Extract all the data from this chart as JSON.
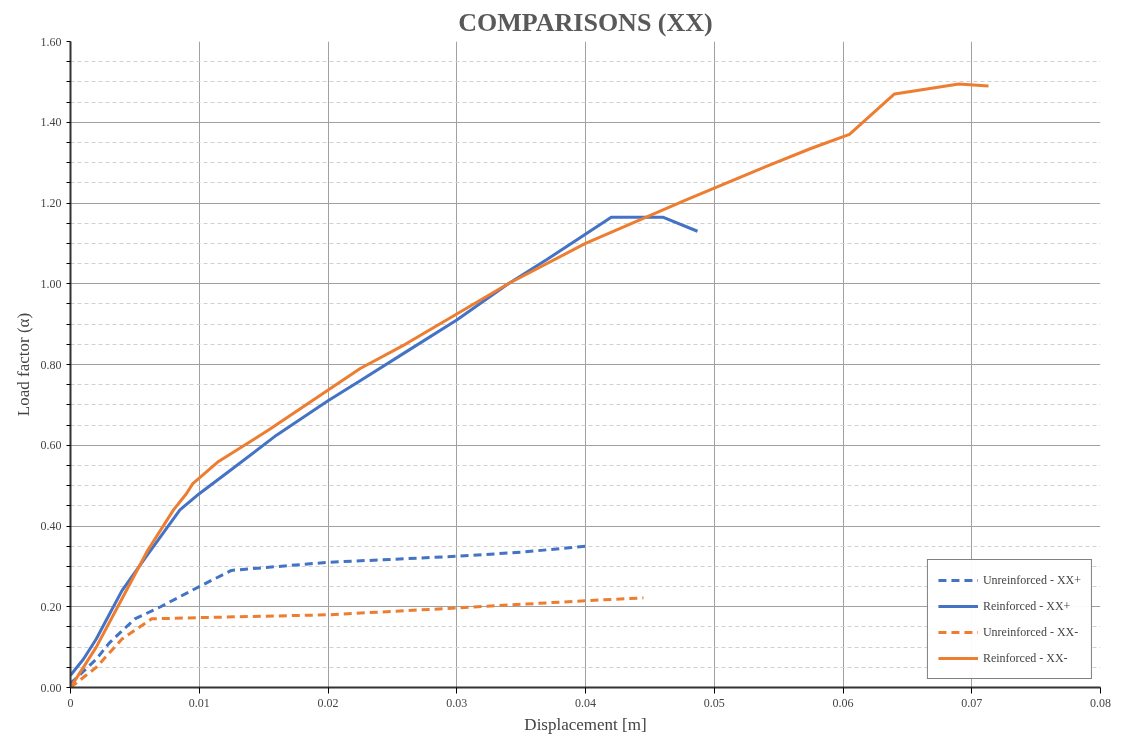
{
  "chart_data": {
    "type": "line",
    "title": "COMPARISONS (XX)",
    "xlabel": "Displacement [m]",
    "ylabel": "Load factor (α)",
    "xlim": [
      0,
      0.08
    ],
    "ylim": [
      0,
      1.6
    ],
    "xticks": [
      {
        "value": 0,
        "label": "0"
      },
      {
        "value": 0.01,
        "label": "0.01"
      },
      {
        "value": 0.02,
        "label": "0.02"
      },
      {
        "value": 0.03,
        "label": "0.03"
      },
      {
        "value": 0.04,
        "label": "0.04"
      },
      {
        "value": 0.05,
        "label": "0.05"
      },
      {
        "value": 0.06,
        "label": "0.06"
      },
      {
        "value": 0.07,
        "label": "0.07"
      },
      {
        "value": 0.08,
        "label": "0.08"
      }
    ],
    "yticks": [
      {
        "value": 0,
        "label": "0.00"
      },
      {
        "value": 0.05,
        "label": null
      },
      {
        "value": 0.1,
        "label": null
      },
      {
        "value": 0.15,
        "label": null
      },
      {
        "value": 0.2,
        "label": "0.20"
      },
      {
        "value": 0.25,
        "label": null
      },
      {
        "value": 0.3,
        "label": null
      },
      {
        "value": 0.35,
        "label": null
      },
      {
        "value": 0.4,
        "label": "0.40"
      },
      {
        "value": 0.45,
        "label": null
      },
      {
        "value": 0.5,
        "label": null
      },
      {
        "value": 0.55,
        "label": null
      },
      {
        "value": 0.6,
        "label": "0.60"
      },
      {
        "value": 0.65,
        "label": null
      },
      {
        "value": 0.7,
        "label": null
      },
      {
        "value": 0.75,
        "label": null
      },
      {
        "value": 0.8,
        "label": "0.80"
      },
      {
        "value": 0.85,
        "label": null
      },
      {
        "value": 0.9,
        "label": null
      },
      {
        "value": 0.95,
        "label": null
      },
      {
        "value": 1.0,
        "label": "1.00"
      },
      {
        "value": 1.05,
        "label": null
      },
      {
        "value": 1.1,
        "label": null
      },
      {
        "value": 1.15,
        "label": null
      },
      {
        "value": 1.2,
        "label": "1.20"
      },
      {
        "value": 1.25,
        "label": null
      },
      {
        "value": 1.3,
        "label": null
      },
      {
        "value": 1.35,
        "label": null
      },
      {
        "value": 1.4,
        "label": "1.40"
      },
      {
        "value": 1.45,
        "label": null
      },
      {
        "value": 1.5,
        "label": null
      },
      {
        "value": 1.55,
        "label": null
      },
      {
        "value": 1.6,
        "label": "1.60"
      }
    ],
    "grid": true,
    "legend": "bottom right",
    "marker": "none",
    "series": [
      {
        "name": "Unreinforced - XX+",
        "color": "#4472c4",
        "line_style": "dashed",
        "x": [
          0,
          0.002,
          0.003,
          0.005,
          0.007,
          0.01,
          0.0125,
          0.02,
          0.03,
          0.035,
          0.04
        ],
        "values": [
          0.01,
          0.07,
          0.11,
          0.17,
          0.2,
          0.25,
          0.29,
          0.31,
          0.325,
          0.335,
          0.35
        ]
      },
      {
        "name": "Reinforced - XX+",
        "color": "#4472c4",
        "line_style": "solid",
        "x": [
          0,
          0.001,
          0.002,
          0.003,
          0.004,
          0.006,
          0.0085,
          0.01,
          0.0125,
          0.016,
          0.02,
          0.0225,
          0.026,
          0.03,
          0.034,
          0.037,
          0.042,
          0.046,
          0.0487
        ],
        "values": [
          0.03,
          0.07,
          0.12,
          0.18,
          0.24,
          0.33,
          0.44,
          0.48,
          0.54,
          0.625,
          0.71,
          0.76,
          0.83,
          0.91,
          1.0,
          1.06,
          1.165,
          1.165,
          1.13
        ]
      },
      {
        "name": "Unreinforced - XX-",
        "color": "#ed7d31",
        "line_style": "dashed",
        "x": [
          0,
          0.002,
          0.004,
          0.0063,
          0.01,
          0.02,
          0.03,
          0.04,
          0.0445
        ],
        "values": [
          0,
          0.05,
          0.12,
          0.17,
          0.173,
          0.18,
          0.197,
          0.215,
          0.222
        ]
      },
      {
        "name": "Reinforced - XX-",
        "color": "#ed7d31",
        "line_style": "solid",
        "x": [
          0,
          0.002,
          0.004,
          0.006,
          0.008,
          0.009,
          0.0095,
          0.0115,
          0.0155,
          0.0225,
          0.026,
          0.03,
          0.034,
          0.04,
          0.048,
          0.054,
          0.0575,
          0.0605,
          0.064,
          0.069,
          0.0713
        ],
        "values": [
          0,
          0.1,
          0.22,
          0.34,
          0.44,
          0.48,
          0.505,
          0.56,
          0.64,
          0.79,
          0.85,
          0.925,
          1.0,
          1.1,
          1.21,
          1.29,
          1.335,
          1.37,
          1.47,
          1.495,
          1.49
        ]
      }
    ]
  }
}
